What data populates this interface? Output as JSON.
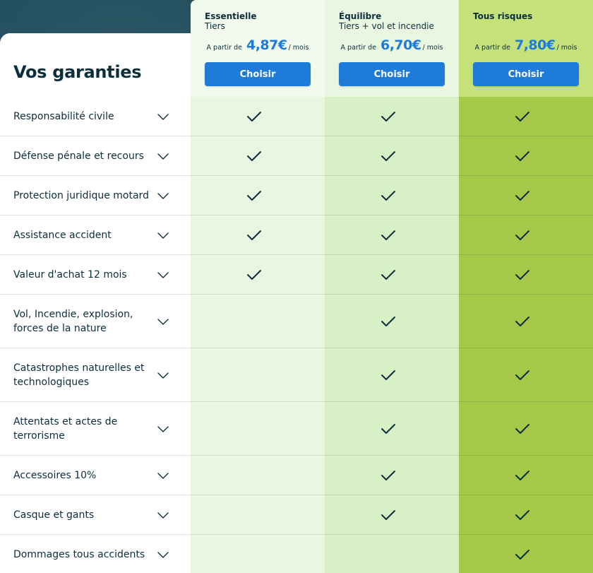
{
  "section_title": "Vos garanties",
  "plans": [
    {
      "name": "Essentielle",
      "subtitle": "Tiers",
      "price_prefix": "A partir de",
      "price": "4,87€",
      "price_suffix": "/ mois",
      "button": "Choisir"
    },
    {
      "name": "Équilibre",
      "subtitle": "Tiers + vol et incendie",
      "price_prefix": "A partir de",
      "price": "6,70€",
      "price_suffix": "/ mois",
      "button": "Choisir"
    },
    {
      "name": "Tous risques",
      "subtitle": "",
      "price_prefix": "A partir de",
      "price": "7,80€",
      "price_suffix": "/ mois",
      "button": "Choisir"
    }
  ],
  "rows": [
    {
      "label": "Responsabilité civile",
      "included": [
        true,
        true,
        true
      ]
    },
    {
      "label": "Défense pénale et recours",
      "included": [
        true,
        true,
        true
      ]
    },
    {
      "label": "Protection juridique motard",
      "included": [
        true,
        true,
        true
      ]
    },
    {
      "label": "Assistance accident",
      "included": [
        true,
        true,
        true
      ]
    },
    {
      "label": "Valeur d'achat 12 mois",
      "included": [
        true,
        true,
        true
      ]
    },
    {
      "label": "Vol, Incendie, explosion, forces de la nature",
      "included": [
        false,
        true,
        true
      ]
    },
    {
      "label": "Catastrophes naturelles et technologiques",
      "included": [
        false,
        true,
        true
      ]
    },
    {
      "label": "Attentats et actes de terrorisme",
      "included": [
        false,
        true,
        true
      ]
    },
    {
      "label": "Accessoires 10%",
      "included": [
        false,
        true,
        true
      ]
    },
    {
      "label": "Casque et gants",
      "included": [
        false,
        true,
        true
      ]
    },
    {
      "label": "Dommages tous accidents",
      "included": [
        false,
        false,
        true
      ]
    }
  ],
  "icons": {
    "row_toggle": "chevron-down-icon",
    "included": "check-icon"
  },
  "colors": {
    "text": "#0b2e3d",
    "button": "#1f7bd8",
    "price": "#1f7bd8",
    "plan_essentielle": "#e9f7e1",
    "plan_equilibre": "#d8f0c6",
    "plan_tous_risques": "#a6c94a"
  }
}
